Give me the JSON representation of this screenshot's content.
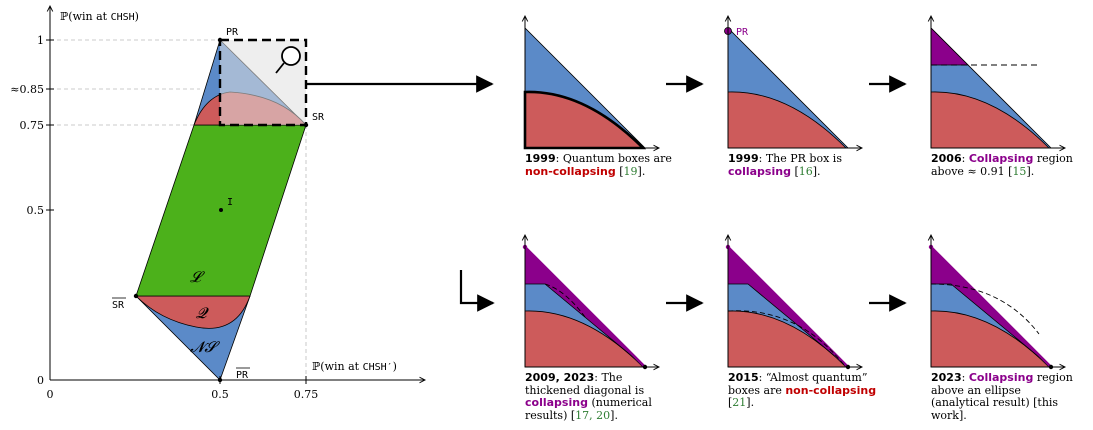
{
  "main": {
    "ylabel_pre": "ℙ(win at ",
    "ylabel_game": "CHSH",
    "ylabel_post": ")",
    "xlabel_pre": "ℙ(win at ",
    "xlabel_game": "CHSH′",
    "xlabel_post": ")",
    "yticks": [
      "1",
      "≈0.85",
      "0.75",
      "0.5",
      "0"
    ],
    "xticks": [
      "0",
      "0.5",
      "0.75"
    ],
    "points": {
      "pr": "PR",
      "sr": "SR",
      "i": "I",
      "sr_bar": "SR",
      "pr_bar": "PR"
    },
    "regions": {
      "local": "𝓛",
      "quantum": "𝓠",
      "nonsignaling": "𝓝𝓢"
    }
  },
  "panels": [
    {
      "year": "1999",
      "text": [
        ": Quantum boxes are ",
        "",
        " [",
        "19",
        "]."
      ],
      "highlight": "non-collapsing",
      "kind": "red"
    },
    {
      "year": "1999",
      "text": [
        ": The PR box is ",
        "",
        " [",
        "16",
        "]."
      ],
      "highlight": "collapsing",
      "kind": "purple",
      "pr_label": "PR"
    },
    {
      "year": "2006",
      "text": [
        ": ",
        "",
        " region above ≈ 0.91 [",
        "15",
        "]."
      ],
      "highlight": "Collapsing",
      "kind": "purple"
    },
    {
      "year": "2009, 2023",
      "text": [
        ": The thickened diagonal is ",
        "",
        " (numerical results) [",
        "17, 20",
        "]."
      ],
      "highlight": "collapsing",
      "kind": "purple"
    },
    {
      "year": "2015",
      "text": [
        ": “Almost quantum” boxes are ",
        "",
        " [",
        "21",
        "]."
      ],
      "highlight": "non-collapsing",
      "kind": "red"
    },
    {
      "year": "2023",
      "text": [
        ": ",
        "",
        " region above an ellipse (analytical result) [this work]."
      ],
      "highlight": "Collapsing",
      "kind": "purple"
    }
  ],
  "colors": {
    "blue": "#5b8ac8",
    "red": "#cd5b5b",
    "green": "#4cb11b",
    "purple": "#8b008b",
    "grey": "#e6e6e6",
    "light_blue": "#9bb6db",
    "light_red": "#e29a9a"
  }
}
